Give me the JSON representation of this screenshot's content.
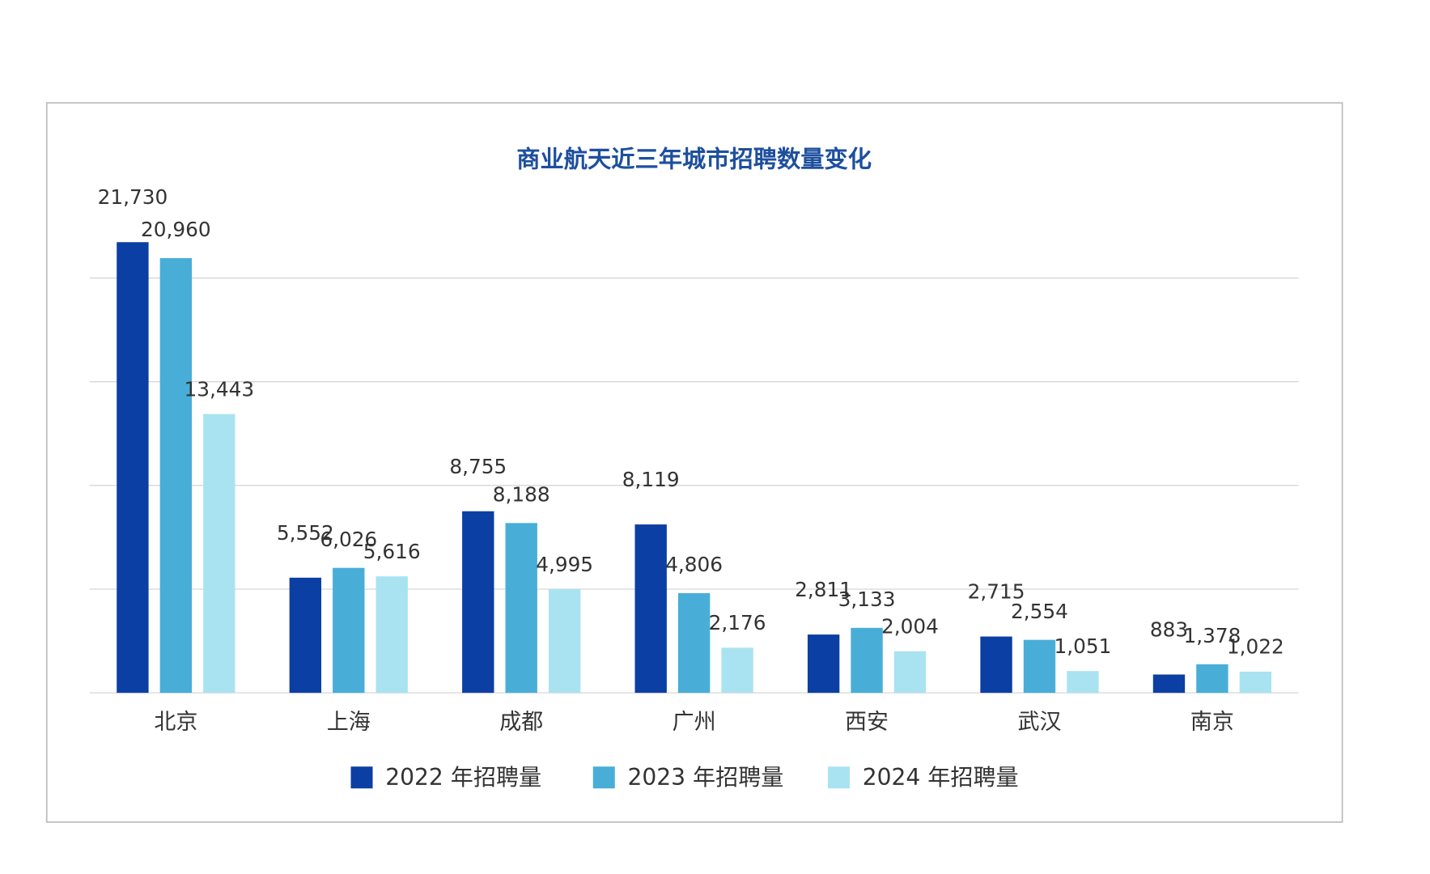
{
  "chart_data": {
    "type": "bar",
    "title": "商业航天近三年城市招聘数量变化",
    "categories": [
      "北京",
      "上海",
      "成都",
      "广州",
      "西安",
      "武汉",
      "南京"
    ],
    "series": [
      {
        "name": "2022 年招聘量",
        "color": "#0b3fa3",
        "values": [
          21730,
          5552,
          8755,
          8119,
          2811,
          2715,
          883
        ],
        "value_labels": [
          "21,730",
          "5,552",
          "8,755",
          "8,119",
          "2,811",
          "2,715",
          "883"
        ]
      },
      {
        "name": "2023 年招聘量",
        "color": "#48aed8",
        "values": [
          20960,
          6026,
          8188,
          4806,
          3133,
          2554,
          1378
        ],
        "value_labels": [
          "20,960",
          "6,026",
          "8,188",
          "4,806",
          "3,133",
          "2,554",
          "1,378"
        ]
      },
      {
        "name": "2024 年招聘量",
        "color": "#a9e3f1",
        "values": [
          13443,
          5616,
          4995,
          2176,
          2004,
          1051,
          1022
        ],
        "value_labels": [
          "13,443",
          "5,616",
          "4,995",
          "2,176",
          "2,004",
          "1,051",
          "1,022"
        ]
      }
    ],
    "ylim": [
      0,
      25000
    ],
    "yticks": [
      0,
      5000,
      10000,
      15000,
      20000
    ],
    "grid": true
  }
}
